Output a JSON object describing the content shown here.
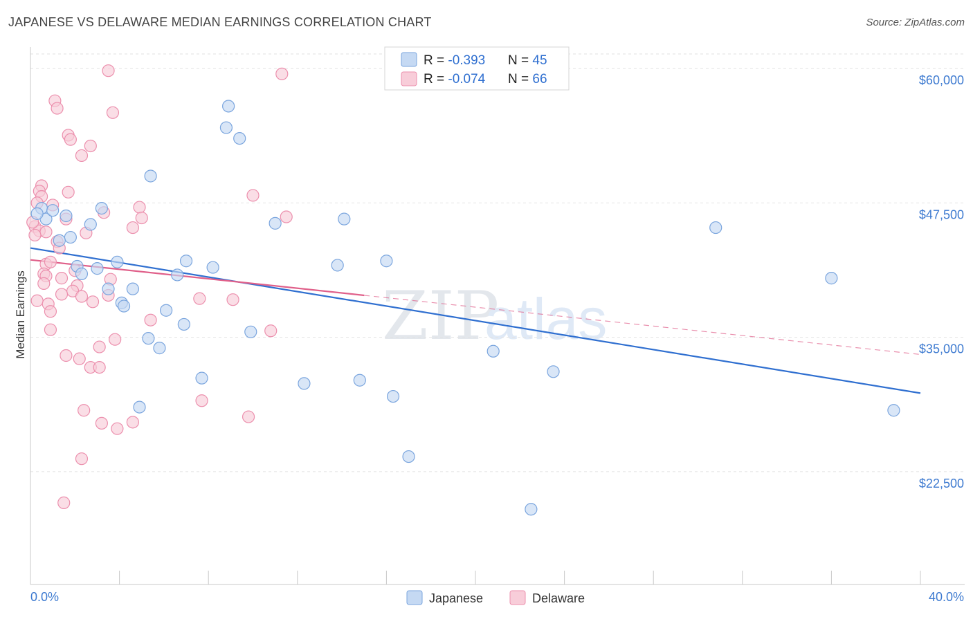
{
  "header": {
    "title": "JAPANESE VS DELAWARE MEDIAN EARNINGS CORRELATION CHART",
    "source": "Source: ZipAtlas.com"
  },
  "watermark": {
    "part1": "ZIP",
    "part2": "atlas"
  },
  "colors": {
    "japanese_fill": "#c5d9f3",
    "japanese_stroke": "#7aa5de",
    "japanese_line": "#2f6fd0",
    "delaware_fill": "#f8cdd9",
    "delaware_stroke": "#ec8fad",
    "delaware_line": "#e0608a",
    "grid": "#e2e2e2",
    "axis_label": "#3d7ad0"
  },
  "legend": {
    "rows": [
      {
        "r_label": "R = ",
        "r_value": "-0.393",
        "n_label": "N = ",
        "n_value": "45"
      },
      {
        "r_label": "R = ",
        "r_value": "-0.074",
        "n_label": "N = ",
        "n_value": "66"
      }
    ]
  },
  "bottom_legend": [
    "Japanese",
    "Delaware"
  ],
  "chart_data": {
    "type": "scatter",
    "title": "JAPANESE VS DELAWARE MEDIAN EARNINGS CORRELATION CHART",
    "xlabel": "",
    "ylabel": "Median Earnings",
    "xlim": [
      0,
      40
    ],
    "ylim": [
      12000,
      62000
    ],
    "x_tick_labels": [
      "0.0%",
      "40.0%"
    ],
    "y_ticks": [
      22500,
      35000,
      47500,
      60000
    ],
    "y_tick_labels": [
      "$22,500",
      "$35,000",
      "$47,500",
      "$60,000"
    ],
    "series": [
      {
        "name": "Japanese",
        "r": -0.393,
        "n": 45,
        "trend": {
          "x": [
            0,
            40
          ],
          "y": [
            43300,
            29800
          ],
          "dashed_from": null
        },
        "points": [
          [
            0.5,
            47000
          ],
          [
            0.7,
            46000
          ],
          [
            1.0,
            46800
          ],
          [
            1.6,
            46300
          ],
          [
            1.8,
            44300
          ],
          [
            1.3,
            44000
          ],
          [
            2.7,
            45500
          ],
          [
            3.2,
            47000
          ],
          [
            5.4,
            50000
          ],
          [
            8.9,
            56500
          ],
          [
            8.8,
            54500
          ],
          [
            9.4,
            53500
          ],
          [
            11.0,
            45600
          ],
          [
            14.1,
            46000
          ],
          [
            30.8,
            45200
          ],
          [
            2.1,
            41600
          ],
          [
            2.3,
            40900
          ],
          [
            3.0,
            41400
          ],
          [
            3.9,
            42000
          ],
          [
            7.0,
            42100
          ],
          [
            6.6,
            40800
          ],
          [
            8.2,
            41500
          ],
          [
            13.8,
            41700
          ],
          [
            16.0,
            42100
          ],
          [
            36.0,
            40500
          ],
          [
            3.5,
            39500
          ],
          [
            4.6,
            39500
          ],
          [
            4.1,
            38200
          ],
          [
            4.2,
            37900
          ],
          [
            6.1,
            37500
          ],
          [
            6.9,
            36200
          ],
          [
            9.9,
            35500
          ],
          [
            5.3,
            34900
          ],
          [
            5.8,
            34000
          ],
          [
            20.8,
            33700
          ],
          [
            23.5,
            31800
          ],
          [
            7.7,
            31200
          ],
          [
            12.3,
            30700
          ],
          [
            14.8,
            31000
          ],
          [
            16.3,
            29500
          ],
          [
            4.9,
            28500
          ],
          [
            38.8,
            28200
          ],
          [
            17.0,
            23900
          ],
          [
            22.5,
            19000
          ],
          [
            0.3,
            46500
          ]
        ]
      },
      {
        "name": "Delaware",
        "r": -0.074,
        "n": 66,
        "trend": {
          "x": [
            0,
            40
          ],
          "y": [
            42200,
            33400
          ],
          "dashed_from": 15
        },
        "points": [
          [
            3.5,
            59800
          ],
          [
            11.3,
            59500
          ],
          [
            1.1,
            57000
          ],
          [
            1.2,
            56300
          ],
          [
            3.7,
            55900
          ],
          [
            1.7,
            53800
          ],
          [
            1.8,
            53400
          ],
          [
            2.7,
            52800
          ],
          [
            2.3,
            51900
          ],
          [
            0.5,
            49100
          ],
          [
            0.4,
            48600
          ],
          [
            0.5,
            48100
          ],
          [
            1.7,
            48500
          ],
          [
            10.0,
            48200
          ],
          [
            0.3,
            47500
          ],
          [
            1.0,
            47300
          ],
          [
            4.9,
            47100
          ],
          [
            5.0,
            46100
          ],
          [
            11.5,
            46200
          ],
          [
            3.3,
            46600
          ],
          [
            1.6,
            46000
          ],
          [
            0.2,
            45300
          ],
          [
            0.4,
            44900
          ],
          [
            0.7,
            44800
          ],
          [
            4.6,
            45200
          ],
          [
            2.5,
            44700
          ],
          [
            1.2,
            43900
          ],
          [
            1.3,
            43300
          ],
          [
            0.7,
            41800
          ],
          [
            0.6,
            40900
          ],
          [
            0.7,
            40700
          ],
          [
            1.4,
            40500
          ],
          [
            3.6,
            40400
          ],
          [
            2.0,
            41200
          ],
          [
            2.1,
            39800
          ],
          [
            1.9,
            39300
          ],
          [
            2.3,
            38800
          ],
          [
            1.4,
            39000
          ],
          [
            3.5,
            38900
          ],
          [
            7.6,
            38600
          ],
          [
            9.1,
            38500
          ],
          [
            2.8,
            38300
          ],
          [
            0.3,
            38400
          ],
          [
            0.8,
            38100
          ],
          [
            0.9,
            37400
          ],
          [
            5.4,
            36600
          ],
          [
            0.9,
            35700
          ],
          [
            10.8,
            35600
          ],
          [
            3.8,
            34800
          ],
          [
            3.1,
            34100
          ],
          [
            1.6,
            33300
          ],
          [
            2.2,
            33000
          ],
          [
            2.7,
            32200
          ],
          [
            3.1,
            32200
          ],
          [
            7.7,
            29100
          ],
          [
            2.4,
            28200
          ],
          [
            9.8,
            27600
          ],
          [
            3.2,
            27000
          ],
          [
            4.6,
            27100
          ],
          [
            3.9,
            26500
          ],
          [
            2.3,
            23700
          ],
          [
            1.5,
            19600
          ],
          [
            0.1,
            45700
          ],
          [
            0.2,
            44500
          ],
          [
            0.9,
            42000
          ],
          [
            0.6,
            40000
          ]
        ]
      }
    ]
  }
}
